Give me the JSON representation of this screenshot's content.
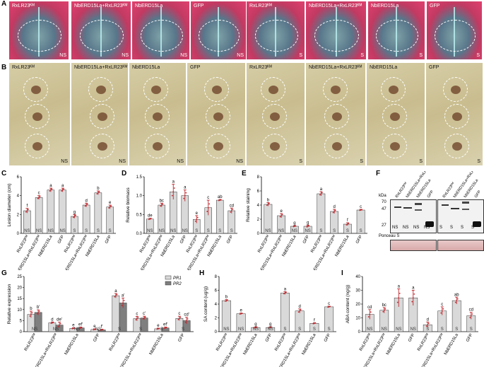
{
  "panel_labels": {
    "A": "A",
    "B": "B",
    "C": "C",
    "D": "D",
    "E": "E",
    "F": "F",
    "G": "G",
    "H": "H",
    "I": "I"
  },
  "panelA": {
    "leaves": [
      {
        "label": "RxLR23ᴷᴹ",
        "corner": "NS"
      },
      {
        "label": "NbERD15La+RxLR23ᴷᴹ",
        "corner": "NS"
      },
      {
        "label": "NbERD15La",
        "corner": "NS"
      },
      {
        "label": "GFP",
        "corner": "NS"
      },
      {
        "label": "RxLR23ᴷᴹ",
        "corner": "S"
      },
      {
        "label": "NbERD15La+RxLR23ᴷᴹ",
        "corner": "S"
      },
      {
        "label": "NbERD15La",
        "corner": "S"
      },
      {
        "label": "GFP",
        "corner": "S"
      }
    ]
  },
  "panelB": {
    "leaves": [
      {
        "label": "RxLR23ᴷᴹ",
        "corner": "NS"
      },
      {
        "label": "NbERD15La+RxLR23ᴷᴹ",
        "corner": "NS"
      },
      {
        "label": "NbERD15La",
        "corner": "NS"
      },
      {
        "label": "GFP",
        "corner": "NS"
      },
      {
        "label": "RxLR23ᴷᴹ",
        "corner": "S"
      },
      {
        "label": "NbERD15La+RxLR23ᴷᴹ",
        "corner": "S"
      },
      {
        "label": "NbERD15La",
        "corner": "S"
      },
      {
        "label": "GFP",
        "corner": "S"
      }
    ]
  },
  "panelF": {
    "kda_label": "kDa",
    "kda_ticks": [
      "70",
      "47",
      "27"
    ],
    "lanes_left": [
      "RxLR23ᴷᴹ",
      "NbERD15La+RxLR23ᴷᴹ",
      "NbERD15La",
      "GFP"
    ],
    "lanes_right": [
      "RxLR23ᴷᴹ",
      "NbERD15La+RxLR23ᴷᴹ",
      "NbERD15La",
      "GFP"
    ],
    "lane_conditions_left": [
      "NS",
      "NS",
      "NS",
      "NS"
    ],
    "lane_conditions_right": [
      "S",
      "S",
      "S",
      "S"
    ],
    "ponceau_label": "Ponceau S"
  },
  "colors": {
    "bar_light": "#d9d9d9",
    "bar_dark": "#7f7f7f",
    "error": "#c0272d",
    "points": "#c0272d"
  },
  "chart_data": [
    {
      "id": "C",
      "type": "bar",
      "ylabel": "Lesion diameter (cm)",
      "ylim": [
        0,
        6
      ],
      "yticks": [
        0,
        2,
        4,
        6
      ],
      "categories": [
        "RxLR23ᴷᴹ",
        "NbERD15La+RxLR23ᴷᴹ",
        "NbERD15La",
        "GFP",
        "RxLR23ᴷᴹ",
        "NbERD15La+RxLR23ᴷᴹ",
        "NbERD15La",
        "GFP"
      ],
      "conditions": [
        "NS",
        "NS",
        "NS",
        "NS",
        "S",
        "S",
        "S",
        "S"
      ],
      "values": [
        2.4,
        3.8,
        4.6,
        4.6,
        1.8,
        3.0,
        4.3,
        2.8
      ],
      "errors": [
        0.25,
        0.2,
        0.2,
        0.2,
        0.2,
        0.2,
        0.2,
        0.2
      ],
      "letters": [
        "f",
        "c",
        "a",
        "a",
        "g",
        "d",
        "b",
        "e"
      ]
    },
    {
      "id": "D",
      "type": "bar",
      "ylabel": "Relative biomass",
      "ylim": [
        0,
        1.5
      ],
      "yticks": [
        0.0,
        0.5,
        1.0,
        1.5
      ],
      "categories": [
        "RxLR23ᴷᴹ",
        "NbERD15La+RxLR23ᴷᴹ",
        "NbERD15La",
        "GFP",
        "RxLR23ᴷᴹ",
        "NbERD15La+RxLR23ᴷᴹ",
        "NbERD15La",
        "GFP"
      ],
      "conditions": [
        "NS",
        "NS",
        "NS",
        "NS",
        "S",
        "S",
        "S",
        "S"
      ],
      "values": [
        0.38,
        0.75,
        1.1,
        1.0,
        0.37,
        0.68,
        0.88,
        0.6
      ],
      "errors": [
        0.02,
        0.05,
        0.2,
        0.15,
        0.1,
        0.2,
        0.02,
        0.07
      ],
      "letters": [
        "de",
        "bc",
        "a",
        "a",
        "e",
        "c",
        "ab",
        "cd"
      ]
    },
    {
      "id": "E",
      "type": "bar",
      "ylabel": "Relative staining",
      "ylim": [
        0,
        8
      ],
      "yticks": [
        0,
        2,
        4,
        6,
        8
      ],
      "categories": [
        "RxLR23ᴷᴹ",
        "NbERD15La+RxLR23ᴷᴹ",
        "NbERD15La",
        "GFP",
        "RxLR23ᴷᴹ",
        "NbERD15La+RxLR23ᴷᴹ",
        "NbERD15La",
        "GFP"
      ],
      "conditions": [
        "NS",
        "NS",
        "NS",
        "NS",
        "S",
        "S",
        "S",
        "S"
      ],
      "values": [
        4.1,
        2.5,
        1.0,
        1.0,
        5.6,
        3.1,
        1.3,
        3.3
      ],
      "errors": [
        0.25,
        0.3,
        0.1,
        0.15,
        0.3,
        0.3,
        0.2,
        0.1
      ],
      "letters": [
        "b",
        "e",
        "g",
        "g",
        "a",
        "d",
        "f",
        "c"
      ]
    },
    {
      "id": "G",
      "type": "bar",
      "ylabel": "Relative expression",
      "ylim": [
        0,
        25
      ],
      "yticks": [
        0,
        5,
        10,
        15,
        20,
        25
      ],
      "categories": [
        "RxLR23ᴷᴹ",
        "NbERD15La+RxLR23ᴷᴹ",
        "NbERD15La",
        "GFP",
        "RxLR23ᴷᴹ",
        "NbERD15La+RxLR23ᴷᴹ",
        "NbERD15La",
        "GFP"
      ],
      "conditions": [
        "NS",
        "NS",
        "NS",
        "NS",
        "S",
        "S",
        "S",
        "S"
      ],
      "series": [
        {
          "name": "PR1",
          "values": [
            7.8,
            4.0,
            1.5,
            1.0,
            16.3,
            5.9,
            1.3,
            6.0
          ],
          "errors": [
            1.5,
            0.4,
            0.3,
            0.3,
            1.0,
            1.0,
            0.3,
            1.0
          ],
          "letters": [
            "b",
            "d",
            "e",
            "e",
            "a",
            "c",
            "e",
            "c"
          ]
        },
        {
          "name": "PR2",
          "values": [
            8.7,
            3.0,
            1.7,
            0.8,
            13.0,
            6.2,
            1.7,
            5.0
          ],
          "errors": [
            1.2,
            1.3,
            0.4,
            0.3,
            2.2,
            0.8,
            0.4,
            1.5
          ],
          "letters": [
            "b'",
            "de'",
            "ef'",
            "f'",
            "a'",
            "c'",
            "ef'",
            "cd'"
          ]
        }
      ]
    },
    {
      "id": "H",
      "type": "bar",
      "ylabel": "SA content (ug/g)",
      "ylim": [
        0,
        8
      ],
      "yticks": [
        0,
        2,
        4,
        6,
        8
      ],
      "categories": [
        "RxLR23ᴷᴹ",
        "NbERD15La+RxLR23ᴷᴹ",
        "NbERD15La",
        "GFP",
        "RxLR23ᴷᴹ",
        "NbERD15La+RxLR23ᴷᴹ",
        "NbERD15La",
        "GFP"
      ],
      "conditions": [
        "NS",
        "NS",
        "NS",
        "NS",
        "S",
        "S",
        "S",
        "S"
      ],
      "values": [
        4.5,
        2.6,
        0.6,
        0.6,
        5.6,
        3.0,
        1.2,
        3.6
      ],
      "errors": [
        0.15,
        0.1,
        0.1,
        0.1,
        0.2,
        0.3,
        0.1,
        0.1
      ],
      "letters": [
        "b",
        "e",
        "g",
        "g",
        "a",
        "d",
        "f",
        "c"
      ]
    },
    {
      "id": "I",
      "type": "bar",
      "ylabel": "ABA content (ng/g)",
      "ylim": [
        0,
        40
      ],
      "yticks": [
        0,
        10,
        20,
        30,
        40
      ],
      "categories": [
        "RxLR23ᴷᴹ",
        "NbERD15La+RxLR23ᴷᴹ",
        "NbERD15La",
        "GFP",
        "RxLR23ᴷᴹ",
        "NbERD15La+RxLR23ᴷᴹ",
        "NbERD15La",
        "GFP"
      ],
      "conditions": [
        "NS",
        "NS",
        "NS",
        "NS",
        "S",
        "S",
        "S",
        "S"
      ],
      "values": [
        12.5,
        15.5,
        24.5,
        24.5,
        5.0,
        15.0,
        22.5,
        11.5
      ],
      "errors": [
        3.5,
        2.0,
        6.5,
        5.5,
        2.0,
        3.0,
        2.5,
        2.5
      ],
      "letters": [
        "cd",
        "bc",
        "a",
        "a",
        "d",
        "c",
        "ab",
        "cd"
      ]
    }
  ]
}
